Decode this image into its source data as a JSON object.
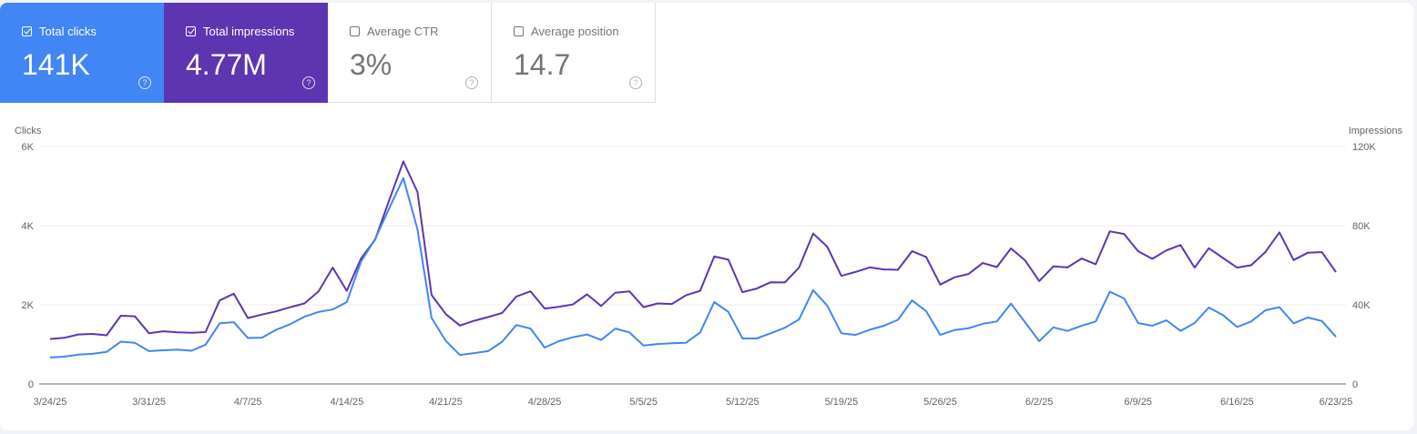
{
  "cards": [
    {
      "label": "Total clicks",
      "value": "141K",
      "checked": true,
      "color": "#4285f4",
      "icon": "help-icon"
    },
    {
      "label": "Total impressions",
      "value": "4.77M",
      "checked": true,
      "color": "#5e35b1",
      "icon": "help-icon"
    },
    {
      "label": "Average CTR",
      "value": "3%",
      "checked": false,
      "icon": "help-icon"
    },
    {
      "label": "Average position",
      "value": "14.7",
      "checked": false,
      "icon": "help-icon"
    }
  ],
  "chart_data": {
    "type": "line",
    "left_axis_label": "Clicks",
    "right_axis_label": "Impressions",
    "left_ylim": [
      0,
      6000
    ],
    "right_ylim": [
      0,
      120000
    ],
    "left_ticks": [
      "0",
      "2K",
      "4K",
      "6K"
    ],
    "right_ticks": [
      "0",
      "40K",
      "80K",
      "120K"
    ],
    "grid": true,
    "x_tick_labels": [
      "3/24/25",
      "3/31/25",
      "4/7/25",
      "4/14/25",
      "4/21/25",
      "4/28/25",
      "5/5/25",
      "5/12/25",
      "5/19/25",
      "5/26/25",
      "6/2/25",
      "6/9/25",
      "6/16/25",
      "6/23/25"
    ],
    "x_range": [
      "3/24/25",
      "6/23/25"
    ],
    "series": [
      {
        "name": "Clicks",
        "axis": "left",
        "color": "#4285f4",
        "values": [
          670,
          690,
          740,
          760,
          810,
          1070,
          1040,
          830,
          850,
          870,
          840,
          990,
          1530,
          1560,
          1160,
          1170,
          1370,
          1510,
          1700,
          1820,
          1880,
          2070,
          3090,
          3660,
          4440,
          5200,
          3910,
          1670,
          1090,
          730,
          780,
          830,
          1070,
          1490,
          1400,
          920,
          1080,
          1180,
          1250,
          1110,
          1400,
          1300,
          970,
          1010,
          1030,
          1040,
          1300,
          2070,
          1820,
          1150,
          1150,
          1280,
          1420,
          1630,
          2370,
          1980,
          1280,
          1240,
          1370,
          1470,
          1620,
          2110,
          1840,
          1240,
          1360,
          1410,
          1520,
          1580,
          2030,
          1560,
          1080,
          1430,
          1340,
          1470,
          1580,
          2330,
          2160,
          1540,
          1470,
          1610,
          1340,
          1540,
          1930,
          1740,
          1440,
          1580,
          1860,
          1940,
          1530,
          1680,
          1590,
          1190
        ]
      },
      {
        "name": "Impressions",
        "axis": "right",
        "color": "#5e35b1",
        "values": [
          22700,
          23300,
          25000,
          25300,
          24600,
          34500,
          34200,
          25600,
          26600,
          26100,
          25900,
          26200,
          42200,
          45600,
          33300,
          35100,
          36700,
          38800,
          40700,
          46800,
          58800,
          47100,
          63400,
          72900,
          92900,
          112400,
          97000,
          45000,
          35300,
          29500,
          31900,
          33800,
          35900,
          44200,
          46800,
          38100,
          39000,
          40200,
          45300,
          39400,
          46100,
          46800,
          38800,
          40700,
          40400,
          44800,
          47100,
          64400,
          62800,
          46400,
          48200,
          51400,
          51300,
          58800,
          76000,
          69400,
          54600,
          56600,
          58900,
          57900,
          57700,
          67100,
          64200,
          50200,
          53900,
          55600,
          61100,
          59100,
          68500,
          62500,
          52000,
          59400,
          58900,
          63400,
          60500,
          77100,
          75800,
          67100,
          63200,
          67500,
          70200,
          58800,
          68600,
          63700,
          58800,
          60000,
          66600,
          76600,
          62600,
          66300,
          66600,
          56500
        ]
      }
    ]
  }
}
